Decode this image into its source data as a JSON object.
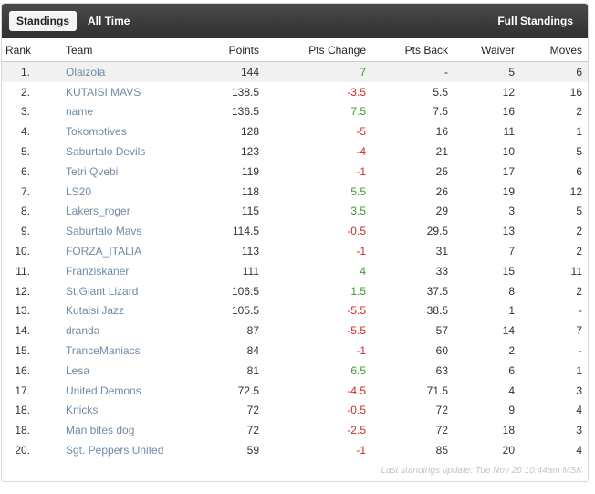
{
  "tabs": {
    "standings": "Standings",
    "all_time": "All Time"
  },
  "full_standings_link": "Full Standings",
  "columns": {
    "rank": "Rank",
    "team": "Team",
    "points": "Points",
    "pts_change": "Pts Change",
    "pts_back": "Pts Back",
    "waiver": "Waiver",
    "moves": "Moves"
  },
  "rows": [
    {
      "rank": "1.",
      "team": "Olaizola",
      "points": "144",
      "change": "7",
      "back": "-",
      "waiver": "5",
      "moves": "6",
      "sign": "pos"
    },
    {
      "rank": "2.",
      "team": "KUTAISI MAVS",
      "points": "138.5",
      "change": "-3.5",
      "back": "5.5",
      "waiver": "12",
      "moves": "16",
      "sign": "neg"
    },
    {
      "rank": "3.",
      "team": "name",
      "points": "136.5",
      "change": "7.5",
      "back": "7.5",
      "waiver": "16",
      "moves": "2",
      "sign": "pos"
    },
    {
      "rank": "4.",
      "team": "Tokomotives",
      "points": "128",
      "change": "-5",
      "back": "16",
      "waiver": "11",
      "moves": "1",
      "sign": "neg"
    },
    {
      "rank": "5.",
      "team": "Saburtalo Devils",
      "points": "123",
      "change": "-4",
      "back": "21",
      "waiver": "10",
      "moves": "5",
      "sign": "neg"
    },
    {
      "rank": "6.",
      "team": "Tetri Qvebi",
      "points": "119",
      "change": "-1",
      "back": "25",
      "waiver": "17",
      "moves": "6",
      "sign": "neg"
    },
    {
      "rank": "7.",
      "team": "LS20",
      "points": "118",
      "change": "5.5",
      "back": "26",
      "waiver": "19",
      "moves": "12",
      "sign": "pos"
    },
    {
      "rank": "8.",
      "team": "Lakers_roger",
      "points": "115",
      "change": "3.5",
      "back": "29",
      "waiver": "3",
      "moves": "5",
      "sign": "pos"
    },
    {
      "rank": "9.",
      "team": "Saburtalo Mavs",
      "points": "114.5",
      "change": "-0.5",
      "back": "29.5",
      "waiver": "13",
      "moves": "2",
      "sign": "neg"
    },
    {
      "rank": "10.",
      "team": "FORZA_ITALIA",
      "points": "113",
      "change": "-1",
      "back": "31",
      "waiver": "7",
      "moves": "2",
      "sign": "neg"
    },
    {
      "rank": "11.",
      "team": "Franziskaner",
      "points": "111",
      "change": "4",
      "back": "33",
      "waiver": "15",
      "moves": "11",
      "sign": "pos"
    },
    {
      "rank": "12.",
      "team": "St.Giant Lizard",
      "points": "106.5",
      "change": "1.5",
      "back": "37.5",
      "waiver": "8",
      "moves": "2",
      "sign": "pos"
    },
    {
      "rank": "13.",
      "team": "Kutaisi Jazz",
      "points": "105.5",
      "change": "-5.5",
      "back": "38.5",
      "waiver": "1",
      "moves": "-",
      "sign": "neg"
    },
    {
      "rank": "14.",
      "team": "dranda",
      "points": "87",
      "change": "-5.5",
      "back": "57",
      "waiver": "14",
      "moves": "7",
      "sign": "neg"
    },
    {
      "rank": "15.",
      "team": "TranceManiacs",
      "points": "84",
      "change": "-1",
      "back": "60",
      "waiver": "2",
      "moves": "-",
      "sign": "neg"
    },
    {
      "rank": "16.",
      "team": "Lesa",
      "points": "81",
      "change": "6.5",
      "back": "63",
      "waiver": "6",
      "moves": "1",
      "sign": "pos"
    },
    {
      "rank": "17.",
      "team": "United Demons",
      "points": "72.5",
      "change": "-4.5",
      "back": "71.5",
      "waiver": "4",
      "moves": "3",
      "sign": "neg"
    },
    {
      "rank": "18.",
      "team": "Knicks",
      "points": "72",
      "change": "-0.5",
      "back": "72",
      "waiver": "9",
      "moves": "4",
      "sign": "neg"
    },
    {
      "rank": "18.",
      "team": "Man bites dog",
      "points": "72",
      "change": "-2.5",
      "back": "72",
      "waiver": "18",
      "moves": "3",
      "sign": "neg"
    },
    {
      "rank": "20.",
      "team": "Sgt. Peppers United",
      "points": "59",
      "change": "-1",
      "back": "85",
      "waiver": "20",
      "moves": "4",
      "sign": "neg"
    }
  ],
  "highlighted_row": 0,
  "footer": "Last standings update: Tue Nov 20 10:44am MSK",
  "colors": {
    "positive": "#3a9a2a",
    "negative": "#cc2a2a",
    "team_link": "#6f8ba6",
    "topbar": "#3a3a3a"
  }
}
